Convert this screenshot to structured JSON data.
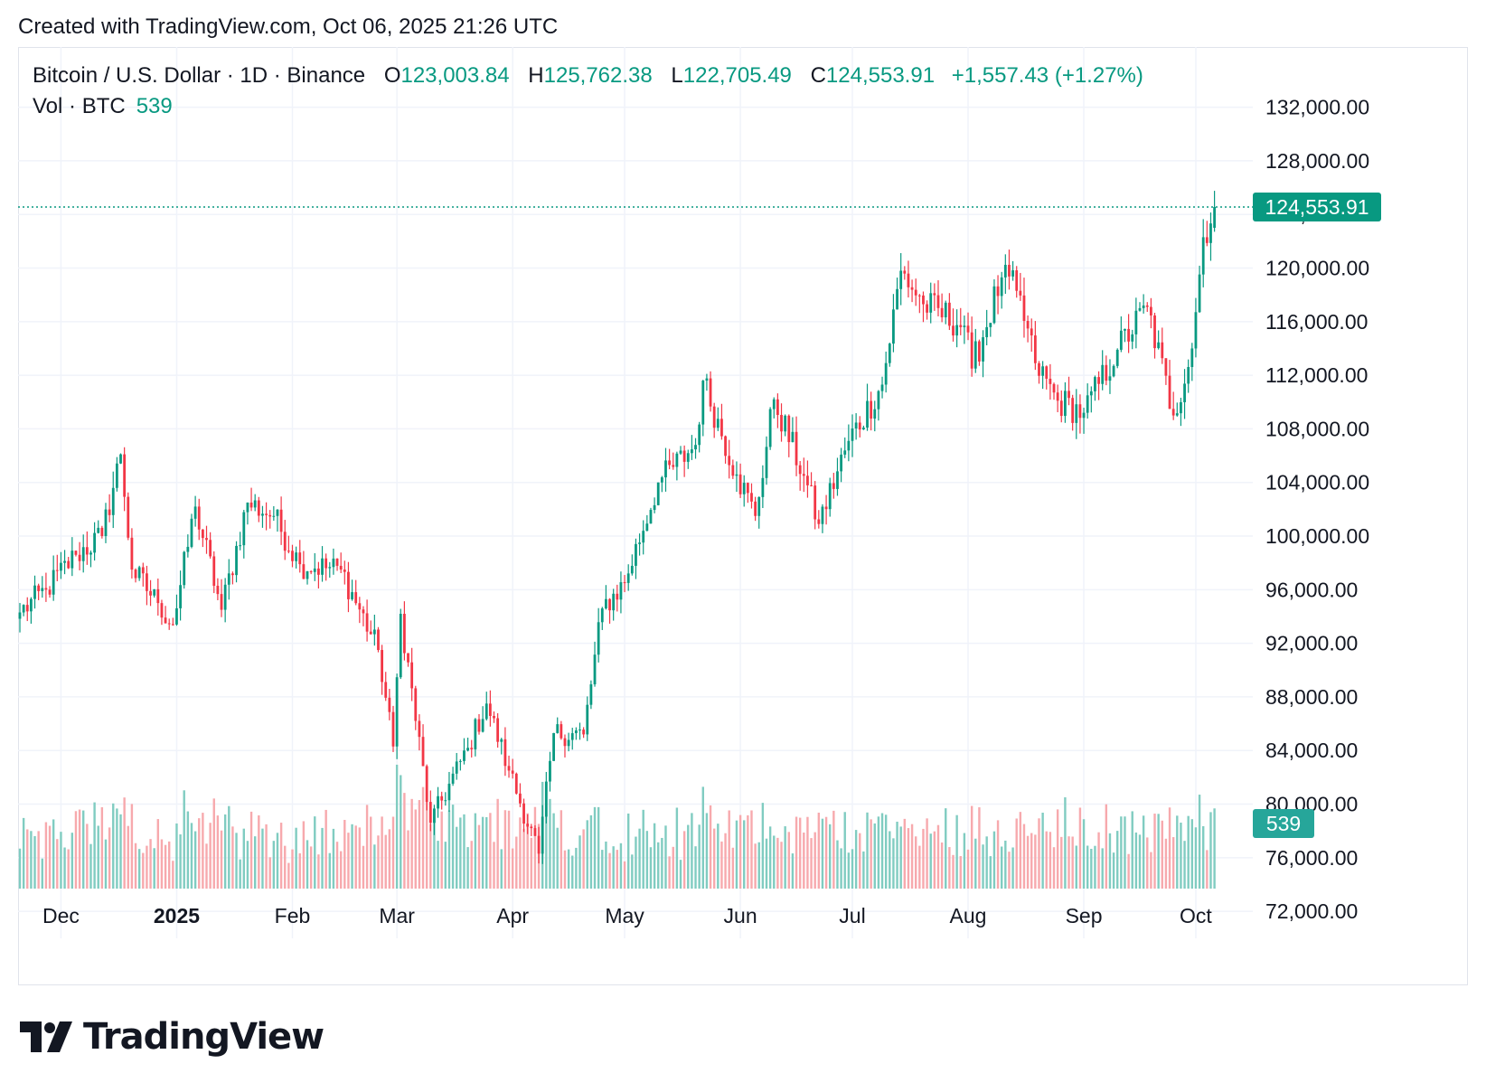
{
  "header": {
    "created_text": "Created with TradingView.com, Oct 06, 2025 21:26 UTC"
  },
  "legend": {
    "symbol": "Bitcoin / U.S. Dollar · 1D · Binance",
    "o_label": "O",
    "o_value": "123,003.84",
    "h_label": "H",
    "h_value": "125,762.38",
    "l_label": "L",
    "l_value": "122,705.49",
    "c_label": "C",
    "c_value": "124,553.91",
    "change": "+1,557.43 (+1.27%)",
    "vol_label": "Vol · BTC",
    "vol_value": "539"
  },
  "price_tag": "124,553.91",
  "volume_tag": "539",
  "brand": {
    "name": "TradingView"
  },
  "colors": {
    "up": "#089981",
    "down": "#f23645",
    "up_volume": "#80ccc1",
    "down_volume": "#f7a9ad",
    "grid": "#f0f3fa",
    "axis_text": "#131722"
  },
  "chart_data": {
    "type": "candlestick",
    "series_name": "Bitcoin / U.S. Dollar",
    "interval": "1D",
    "ylim": [
      68500,
      133000
    ],
    "y_ticks": [
      "72,000.00",
      "76,000.00",
      "80,000.00",
      "84,000.00",
      "88,000.00",
      "92,000.00",
      "96,000.00",
      "100,000.00",
      "104,000.00",
      "108,000.00",
      "112,000.00",
      "116,000.00",
      "120,000.00",
      "124,000.00",
      "128,000.00",
      "132,000.00"
    ],
    "x_ticks": [
      "Dec",
      "2025",
      "Feb",
      "Mar",
      "Apr",
      "May",
      "Jun",
      "Jul",
      "Aug",
      "Sep",
      "Oct"
    ],
    "last_close": 124553.91,
    "grid": true,
    "volume_pane": true,
    "closes": [
      {
        "date": "2024-11-20",
        "close": 94300
      },
      {
        "date": "2024-11-27",
        "close": 96000
      },
      {
        "date": "2024-12-05",
        "close": 98600
      },
      {
        "date": "2024-12-12",
        "close": 100000
      },
      {
        "date": "2024-12-17",
        "close": 106100
      },
      {
        "date": "2024-12-20",
        "close": 97500
      },
      {
        "date": "2024-12-27",
        "close": 95000
      },
      {
        "date": "2024-12-31",
        "close": 93400
      },
      {
        "date": "2025-01-06",
        "close": 102200
      },
      {
        "date": "2025-01-13",
        "close": 94500
      },
      {
        "date": "2025-01-20",
        "close": 102500
      },
      {
        "date": "2025-01-27",
        "close": 101500
      },
      {
        "date": "2025-02-03",
        "close": 97900
      },
      {
        "date": "2025-02-14",
        "close": 97500
      },
      {
        "date": "2025-02-24",
        "close": 91500
      },
      {
        "date": "2025-02-28",
        "close": 84300
      },
      {
        "date": "2025-03-02",
        "close": 94200
      },
      {
        "date": "2025-03-10",
        "close": 78600
      },
      {
        "date": "2025-03-20",
        "close": 84200
      },
      {
        "date": "2025-03-25",
        "close": 87500
      },
      {
        "date": "2025-03-31",
        "close": 82500
      },
      {
        "date": "2025-04-08",
        "close": 76300
      },
      {
        "date": "2025-04-12",
        "close": 85300
      },
      {
        "date": "2025-04-20",
        "close": 85200
      },
      {
        "date": "2025-04-25",
        "close": 94600
      },
      {
        "date": "2025-05-01",
        "close": 96500
      },
      {
        "date": "2025-05-10",
        "close": 104000
      },
      {
        "date": "2025-05-20",
        "close": 106800
      },
      {
        "date": "2025-05-22",
        "close": 111600
      },
      {
        "date": "2025-05-31",
        "close": 104600
      },
      {
        "date": "2025-06-05",
        "close": 101500
      },
      {
        "date": "2025-06-10",
        "close": 110200
      },
      {
        "date": "2025-06-18",
        "close": 104500
      },
      {
        "date": "2025-06-22",
        "close": 100900
      },
      {
        "date": "2025-06-30",
        "close": 107100
      },
      {
        "date": "2025-07-09",
        "close": 111300
      },
      {
        "date": "2025-07-14",
        "close": 119800
      },
      {
        "date": "2025-07-20",
        "close": 117300
      },
      {
        "date": "2025-07-31",
        "close": 115700
      },
      {
        "date": "2025-08-02",
        "close": 112500
      },
      {
        "date": "2025-08-10",
        "close": 119300
      },
      {
        "date": "2025-08-14",
        "close": 118300
      },
      {
        "date": "2025-08-19",
        "close": 112900
      },
      {
        "date": "2025-08-25",
        "close": 110100
      },
      {
        "date": "2025-09-01",
        "close": 109200
      },
      {
        "date": "2025-09-10",
        "close": 113900
      },
      {
        "date": "2025-09-18",
        "close": 117100
      },
      {
        "date": "2025-09-25",
        "close": 109000
      },
      {
        "date": "2025-09-30",
        "close": 114000
      },
      {
        "date": "2025-10-03",
        "close": 122300
      },
      {
        "date": "2025-10-06",
        "close": 124553.91
      }
    ]
  }
}
